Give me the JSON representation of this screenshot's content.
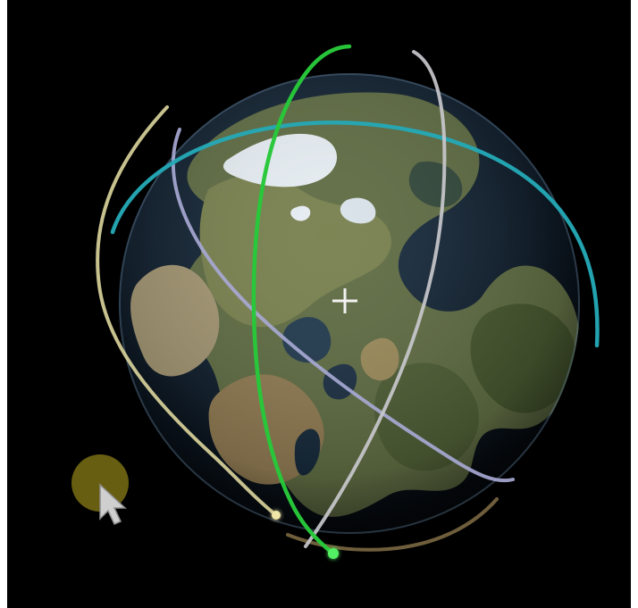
{
  "scene": {
    "name": "orbit-globe-view",
    "background_color": "#000000"
  },
  "globe": {
    "ocean_color": "#0f1d2b",
    "land_color": "#6b7548",
    "highlight_color": "#9aa063",
    "ice_color": "#e9eef2"
  },
  "orbits": [
    {
      "name": "green-orbit",
      "color": "#28c83a"
    },
    {
      "name": "cyan-orbit",
      "color": "#24a9b6"
    },
    {
      "name": "lavender-orbit",
      "color": "#a7a8d2"
    },
    {
      "name": "silver-orbit",
      "color": "#c8c8cc"
    },
    {
      "name": "pale-yellow-orbit",
      "color": "#d8d19a"
    },
    {
      "name": "tan-orbit",
      "color": "#7b6842"
    }
  ],
  "cursor": {
    "indicator_color": "#6e6312",
    "arrow_color": "#cfcfcf"
  },
  "crosshair": {
    "color": "#f2f2f2"
  }
}
